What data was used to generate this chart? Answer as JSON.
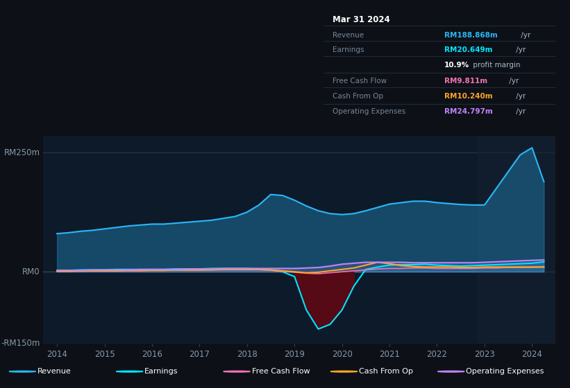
{
  "bg_color": "#0d1117",
  "plot_bg_color": "#0d1a2a",
  "revenue_color": "#29b6f6",
  "earnings_color": "#00e5ff",
  "free_cash_flow_color": "#f472b6",
  "cash_from_op_color": "#ffa726",
  "operating_expenses_color": "#c084fc",
  "info_box": {
    "title": "Mar 31 2024",
    "revenue_label": "Revenue",
    "revenue_value": "RM188.868m",
    "revenue_suffix": " /yr",
    "revenue_color": "#29b6f6",
    "earnings_label": "Earnings",
    "earnings_value": "RM20.649m",
    "earnings_suffix": " /yr",
    "earnings_color": "#00e5ff",
    "profit_margin": "10.9%",
    "profit_margin_text": " profit margin",
    "fcf_label": "Free Cash Flow",
    "fcf_value": "RM9.811m",
    "fcf_suffix": " /yr",
    "fcf_color": "#f472b6",
    "cashop_label": "Cash From Op",
    "cashop_value": "RM10.240m",
    "cashop_suffix": " /yr",
    "cashop_color": "#ffa726",
    "opex_label": "Operating Expenses",
    "opex_value": "RM24.797m",
    "opex_suffix": " /yr",
    "opex_color": "#c084fc"
  },
  "xmin": 2013.7,
  "xmax": 2024.5,
  "ymin": -150,
  "ymax": 285,
  "legend_items": [
    {
      "label": "Revenue",
      "color": "#29b6f6"
    },
    {
      "label": "Earnings",
      "color": "#00e5ff"
    },
    {
      "label": "Free Cash Flow",
      "color": "#f472b6"
    },
    {
      "label": "Cash From Op",
      "color": "#ffa726"
    },
    {
      "label": "Operating Expenses",
      "color": "#c084fc"
    }
  ]
}
